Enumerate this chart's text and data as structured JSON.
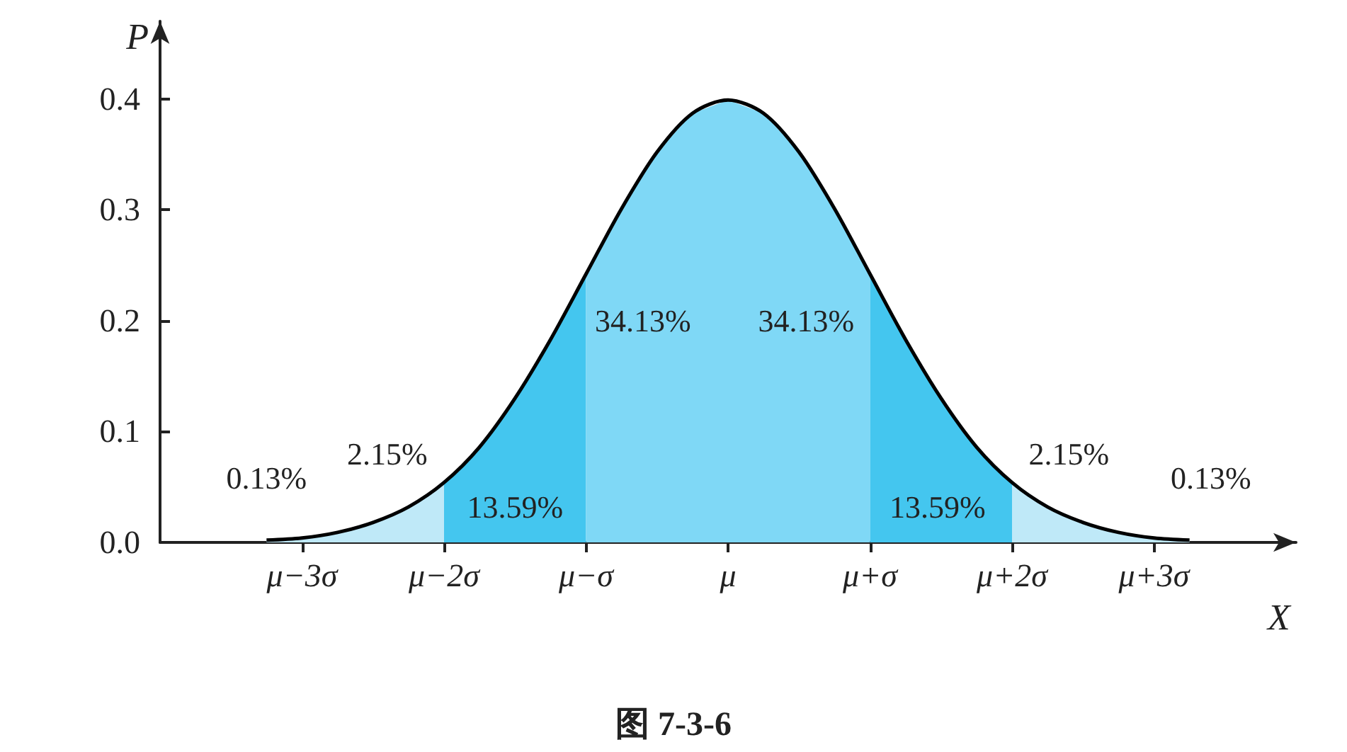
{
  "chart_data": {
    "type": "area",
    "title": "图 7-3-6",
    "xlabel": "X",
    "ylabel": "P",
    "categories": [
      null,
      null,
      null,
      null,
      "μ−3σ",
      null,
      null,
      null,
      "μ−2σ",
      null,
      null,
      null,
      "μ−σ",
      null,
      null,
      null,
      "μ",
      null,
      null,
      null,
      "μ+σ",
      null,
      null,
      null,
      "μ+2σ",
      null,
      null,
      null,
      "μ+3σ",
      null,
      null,
      null,
      null
    ],
    "ylim": [
      0,
      0.47
    ],
    "yticks": [
      {
        "value": 0,
        "label": "0.0"
      },
      0.1,
      0.2,
      0.3,
      0.4
    ],
    "grid": false,
    "marker": "none",
    "series": [
      {
        "color": "#bfe9f8",
        "values": [
          null,
          null,
          null,
          0.002,
          0.004,
          0.009,
          0.018,
          0.032,
          0.054,
          null,
          null,
          null,
          null,
          null,
          null,
          null,
          null,
          null,
          null,
          null,
          null,
          null,
          null,
          null,
          null,
          null,
          null,
          null,
          null,
          null,
          null,
          null,
          null
        ]
      },
      {
        "color": "#44c6ef",
        "values": [
          null,
          null,
          null,
          null,
          null,
          null,
          null,
          null,
          0.054,
          0.086,
          0.13,
          0.183,
          0.242,
          null,
          null,
          null,
          null,
          null,
          null,
          null,
          null,
          null,
          null,
          null,
          null,
          null,
          null,
          null,
          null,
          null,
          null,
          null,
          null
        ]
      },
      {
        "color": "#7fd8f6",
        "values": [
          null,
          null,
          null,
          null,
          null,
          null,
          null,
          null,
          null,
          null,
          null,
          null,
          0.242,
          0.301,
          0.352,
          0.387,
          0.399,
          0.387,
          0.352,
          0.301,
          0.242,
          null,
          null,
          null,
          null,
          null,
          null,
          null,
          null,
          null,
          null,
          null,
          null
        ]
      },
      {
        "color": "#44c6ef",
        "values": [
          null,
          null,
          null,
          null,
          null,
          null,
          null,
          null,
          null,
          null,
          null,
          null,
          null,
          null,
          null,
          null,
          null,
          null,
          null,
          null,
          0.242,
          0.183,
          0.13,
          0.086,
          0.054,
          null,
          null,
          null,
          null,
          null,
          null,
          null,
          null
        ]
      },
      {
        "color": "#bfe9f8",
        "values": [
          null,
          null,
          null,
          null,
          null,
          null,
          null,
          null,
          null,
          null,
          null,
          null,
          null,
          null,
          null,
          null,
          null,
          null,
          null,
          null,
          null,
          null,
          null,
          null,
          0.054,
          0.032,
          0.018,
          0.009,
          0.004,
          0.002,
          null,
          null,
          null
        ]
      },
      {
        "type": "line",
        "color": "#000000",
        "values": [
          null,
          null,
          null,
          0.002,
          0.004,
          0.009,
          0.018,
          0.032,
          0.054,
          0.086,
          0.13,
          0.183,
          0.242,
          0.301,
          0.352,
          0.387,
          0.399,
          0.387,
          0.352,
          0.301,
          0.242,
          0.183,
          0.13,
          0.086,
          0.054,
          0.032,
          0.018,
          0.009,
          0.004,
          0.002,
          null,
          null,
          null
        ]
      }
    ],
    "annotations": [
      "34.13%",
      "34.13%",
      "13.59%",
      "13.59%",
      "2.15%",
      "2.15%",
      "0.13%",
      "0.13%"
    ]
  }
}
